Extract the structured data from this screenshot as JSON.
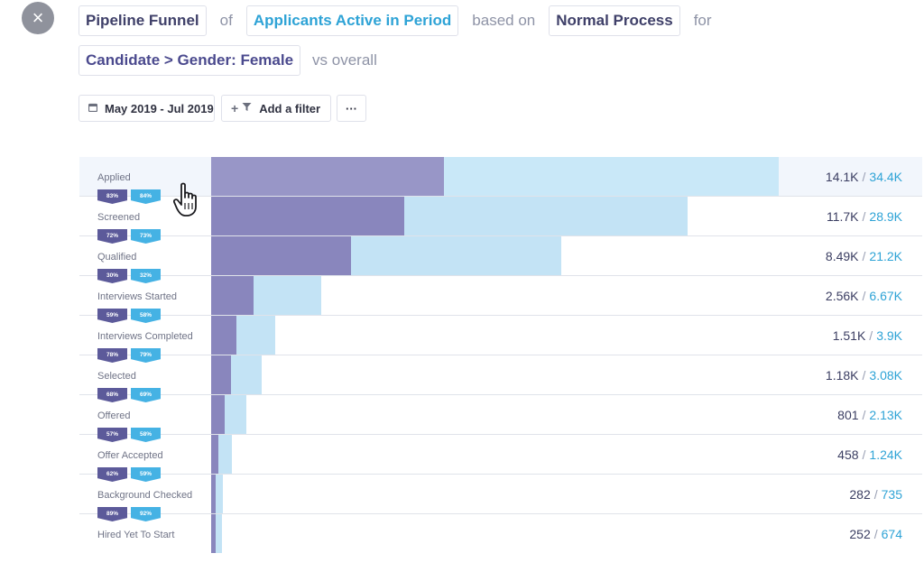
{
  "close_icon": "×",
  "query": {
    "chart_type": "Pipeline Funnel",
    "of_label": "of",
    "metric": "Applicants Active in Period",
    "based_label": "based on",
    "process": "Normal Process",
    "for_label": "for",
    "segment": "Candidate > Gender: Female",
    "vs_label": "vs overall"
  },
  "toolbar": {
    "date_range": "May 2019 - Jul 2019",
    "add_filter": "Add a filter",
    "more": "···"
  },
  "colors": {
    "segment_bar": "#8986bd",
    "overall_bar": "#c3e3f5",
    "segment_badge": "#5c5a9a",
    "overall_badge": "#45b2e4",
    "accent_blue": "#2ea3d6"
  },
  "chart_data": {
    "type": "bar",
    "orientation": "horizontal-funnel",
    "categories": [
      "Applied",
      "Screened",
      "Qualified",
      "Interviews Started",
      "Interviews Completed",
      "Selected",
      "Offered",
      "Offer Accepted",
      "Background Checked",
      "Hired Yet To Start"
    ],
    "series": [
      {
        "name": "segment",
        "values": [
          14100,
          11700,
          8490,
          2560,
          1510,
          1180,
          801,
          458,
          282,
          252
        ]
      },
      {
        "name": "overall",
        "values": [
          34400,
          28900,
          21200,
          6670,
          3900,
          3080,
          2130,
          1240,
          735,
          674
        ]
      }
    ],
    "segment_labels": [
      "14.1K",
      "11.7K",
      "8.49K",
      "2.56K",
      "1.51K",
      "1.18K",
      "801",
      "458",
      "282",
      "252"
    ],
    "overall_labels": [
      "34.4K",
      "28.9K",
      "21.2K",
      "6.67K",
      "3.9K",
      "3.08K",
      "2.13K",
      "1.24K",
      "735",
      "674"
    ],
    "conversion_segment": [
      "83%",
      "72%",
      "30%",
      "59%",
      "78%",
      "68%",
      "57%",
      "62%",
      "89%"
    ],
    "conversion_overall": [
      "84%",
      "73%",
      "32%",
      "58%",
      "79%",
      "69%",
      "58%",
      "59%",
      "92%"
    ]
  }
}
